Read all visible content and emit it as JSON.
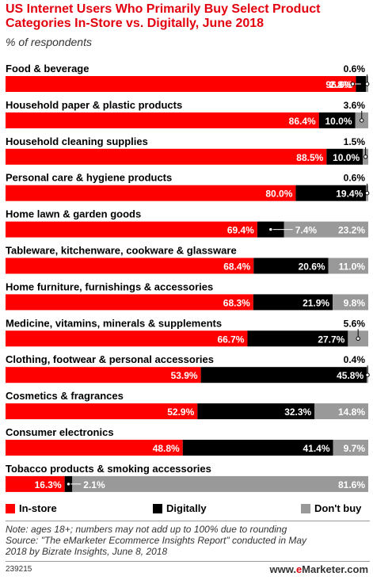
{
  "title_line1": "US Internet Users Who Primarily Buy Select Product",
  "title_line2": "Categories In-Store vs. Digitally, June 2018",
  "subtitle": "% of respondents",
  "colors": {
    "in_store": "#ff0000",
    "digitally": "#000000",
    "dont_buy": "#999999",
    "brand_red": "#e3000f"
  },
  "chart_data": {
    "type": "bar",
    "orientation": "horizontal",
    "stacked": true,
    "categories": [
      "Food & beverage",
      "Household paper & plastic products",
      "Household cleaning supplies",
      "Personal care & hygiene products",
      "Home lawn & garden goods",
      "Tableware, kitchenware, cookware & glassware",
      "Home furniture, furnishings & accessories",
      "Medicine, vitamins, minerals & supplements",
      "Clothing, footwear & personal accessories",
      "Cosmetics & fragrances",
      "Consumer electronics",
      "Tobacco products & smoking accessories"
    ],
    "series": [
      {
        "name": "In-store",
        "values": [
          96.6,
          86.4,
          88.5,
          80.0,
          69.4,
          68.4,
          68.3,
          66.7,
          53.9,
          52.9,
          48.8,
          16.3
        ]
      },
      {
        "name": "Digitally",
        "values": [
          2.8,
          10.0,
          10.0,
          19.4,
          7.4,
          20.6,
          21.9,
          27.7,
          45.8,
          32.3,
          41.4,
          2.1
        ]
      },
      {
        "name": "Don't buy",
        "values": [
          0.6,
          3.6,
          1.5,
          0.6,
          23.2,
          11.0,
          9.8,
          5.6,
          0.4,
          14.8,
          9.7,
          81.6
        ]
      }
    ],
    "labels": [
      [
        "96.6%",
        "2.8%",
        "0.6%"
      ],
      [
        "86.4%",
        "10.0%",
        "3.6%"
      ],
      [
        "88.5%",
        "10.0%",
        "1.5%"
      ],
      [
        "80.0%",
        "19.4%",
        "0.6%"
      ],
      [
        "69.4%",
        "7.4%",
        "23.2%"
      ],
      [
        "68.4%",
        "20.6%",
        "11.0%"
      ],
      [
        "68.3%",
        "21.9%",
        "9.8%"
      ],
      [
        "66.7%",
        "27.7%",
        "5.6%"
      ],
      [
        "53.9%",
        "45.8%",
        "0.4%"
      ],
      [
        "52.9%",
        "32.3%",
        "14.8%"
      ],
      [
        "48.8%",
        "41.4%",
        "9.7%"
      ],
      [
        "16.3%",
        "2.1%",
        "81.6%"
      ]
    ]
  },
  "legend": {
    "in_store": "In-store",
    "digitally": "Digitally",
    "dont_buy": "Don't buy"
  },
  "notes": {
    "line1": "Note: ages 18+; numbers may not add up to 100% due to rounding",
    "line2": "Source: \"The eMarketer Ecommerce Insights Report\" conducted in May",
    "line3": "2018 by Bizrate Insights, June 8, 2018"
  },
  "footer_id": "239215",
  "brand": {
    "prefix": "www.",
    "e": "e",
    "rest": "Marketer",
    "suffix": ".com"
  }
}
